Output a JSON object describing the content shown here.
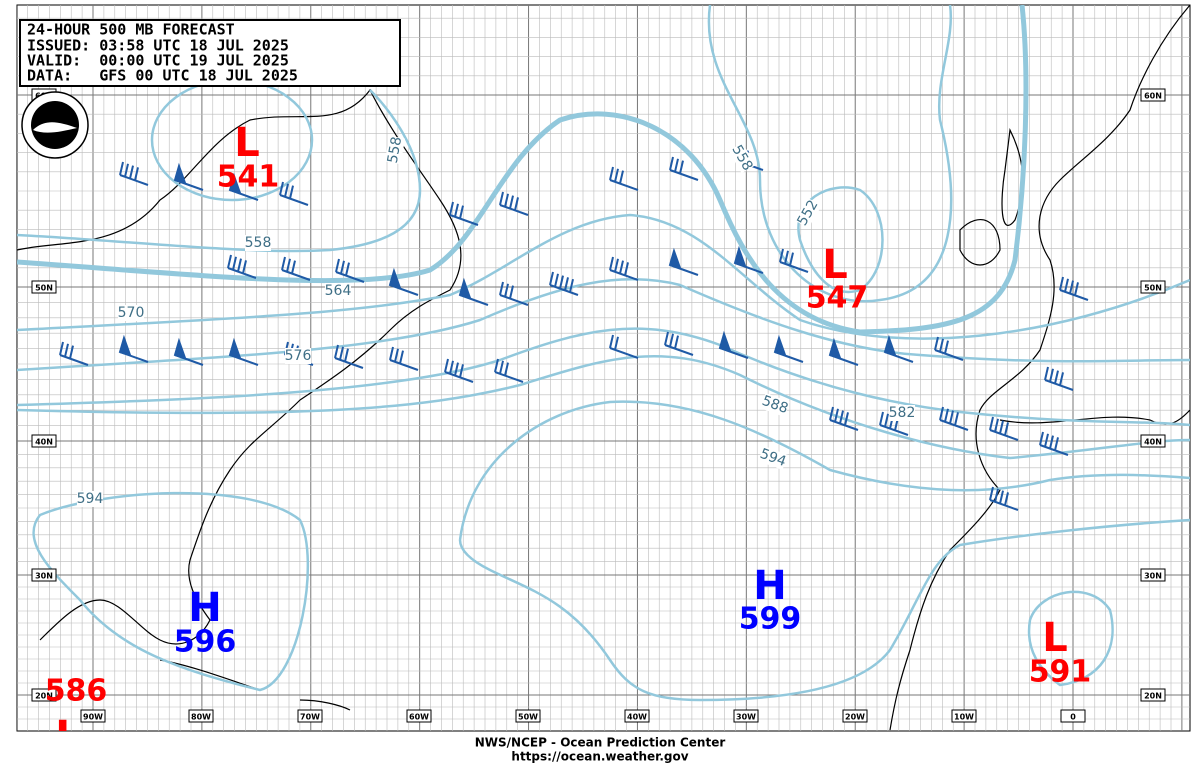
{
  "header": {
    "lines": [
      "24-HOUR 500 MB FORECAST",
      "ISSUED: 03:58 UTC 18 JUL 2025",
      "VALID:  00:00 UTC 19 JUL 2025",
      "DATA:   GFS 00 UTC 18 JUL 2025"
    ]
  },
  "lat_labels": [
    "60N",
    "50N",
    "40N",
    "30N",
    "20N"
  ],
  "lon_labels": [
    "90W",
    "80W",
    "70W",
    "60W",
    "50W",
    "40W",
    "30W",
    "20W",
    "10W",
    "0"
  ],
  "contour_labels": [
    558,
    552,
    558,
    564,
    570,
    576,
    588,
    582,
    594,
    594,
    558
  ],
  "centers": [
    {
      "symbol": "L",
      "value": 541
    },
    {
      "symbol": "L",
      "value": 547
    },
    {
      "symbol": "H",
      "value": 596
    },
    {
      "symbol": "H",
      "value": 599
    },
    {
      "symbol": "L",
      "value": 591
    },
    {
      "symbol": "L",
      "value": 586
    }
  ],
  "footer": {
    "line1": "NWS/NCEP - Ocean Prediction Center",
    "line2": "https://ocean.weather.gov"
  }
}
